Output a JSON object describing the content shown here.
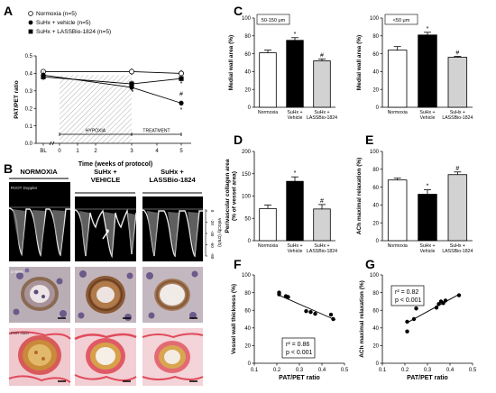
{
  "panel_letters": {
    "A": "A",
    "B": "B",
    "C": "C",
    "D": "D",
    "E": "E",
    "F": "F",
    "G": "G"
  },
  "chart_data": [
    {
      "id": "A",
      "type": "line",
      "legend": [
        "Normoxia (n=5)",
        "SuHx + vehicle (n=5)",
        "SuHx + LASSBio-1824 (n=5)"
      ],
      "legend_placement": "top-left",
      "ylabel": "PAT/PET ratio",
      "xlabel": "Time (weeks of protocol)",
      "ylim": [
        0.0,
        0.5
      ],
      "yticks": [
        "0.0",
        "0.1",
        "0.2",
        "0.3",
        "0.4",
        "0.5"
      ],
      "xticks": [
        "BL",
        "0",
        "1",
        "2",
        "3",
        "4",
        "5"
      ],
      "x": [
        "BL",
        "3",
        "5"
      ],
      "series": [
        {
          "name": "Normoxia (n=5)",
          "marker": "open-circle",
          "values": [
            0.41,
            0.41,
            0.4
          ]
        },
        {
          "name": "SuHx + vehicle (n=5)",
          "marker": "filled-circle",
          "values": [
            0.39,
            0.32,
            0.23
          ]
        },
        {
          "name": "SuHx + LASSBio-1824 (n=5)",
          "marker": "filled-square",
          "values": [
            0.38,
            0.34,
            0.37
          ]
        }
      ],
      "annotations": [
        "HYPOXIA",
        "TREATMENT",
        "*",
        "*",
        "#",
        "*"
      ]
    },
    {
      "id": "C1",
      "type": "bar",
      "header": "50-150 μm",
      "ylabel": "Medial wall area (%)",
      "ylim": [
        0,
        100
      ],
      "yticks": [
        "0",
        "20",
        "40",
        "60",
        "80",
        "100"
      ],
      "categories": [
        "Normoxia",
        "SuHx +\nVehicle",
        "SuHx +\nLASSBio-1824"
      ],
      "values": [
        61,
        75,
        52
      ],
      "errors": [
        3,
        3,
        2
      ],
      "marks": [
        "",
        "*",
        "#"
      ]
    },
    {
      "id": "C2",
      "type": "bar",
      "header": "<50 μm",
      "ylabel": "Medial wall area (%)",
      "ylim": [
        0,
        100
      ],
      "yticks": [
        "0",
        "20",
        "40",
        "60",
        "80",
        "100"
      ],
      "categories": [
        "Normoxia",
        "SuHx +\nVehicle",
        "SuHx +\nLASSBio-1824"
      ],
      "values": [
        64,
        81,
        56
      ],
      "errors": [
        4,
        3,
        1
      ],
      "marks": [
        "",
        "*",
        "#"
      ]
    },
    {
      "id": "D",
      "type": "bar",
      "ylabel": "Perivascular collagen area\n(% of vessel area)",
      "ylim": [
        0,
        200
      ],
      "yticks": [
        "0",
        "50",
        "100",
        "150",
        "200"
      ],
      "categories": [
        "Normoxia",
        "SuHx +\nVehicle",
        "SuHx +\nLASSBio-1824"
      ],
      "values": [
        72,
        133,
        71
      ],
      "errors": [
        8,
        10,
        10
      ],
      "marks": [
        "",
        "*",
        "#"
      ]
    },
    {
      "id": "E",
      "type": "bar",
      "ylabel": "ACh maximal relaxation (%)",
      "ylim": [
        0,
        100
      ],
      "yticks": [
        "0",
        "20",
        "40",
        "60",
        "80",
        "100"
      ],
      "categories": [
        "Normoxia",
        "SuHx +\nVehicle",
        "SuHx +\nLASSBio-1824"
      ],
      "values": [
        68,
        52,
        74
      ],
      "errors": [
        2,
        5,
        3
      ],
      "marks": [
        "",
        "*",
        "#"
      ]
    },
    {
      "id": "F",
      "type": "scatter",
      "ylabel": "Vessel wall thickness (%)",
      "xlabel": "PAT/PET ratio",
      "xlim": [
        0.1,
        0.5
      ],
      "ylim": [
        0,
        100
      ],
      "xticks": [
        "0.1",
        "0.2",
        "0.3",
        "0.4",
        "0.5"
      ],
      "yticks": [
        "0",
        "20",
        "40",
        "60",
        "80",
        "100"
      ],
      "x": [
        0.21,
        0.21,
        0.24,
        0.25,
        0.33,
        0.35,
        0.37,
        0.44,
        0.45
      ],
      "y": [
        80,
        78,
        76,
        75,
        59,
        58,
        56,
        55,
        50
      ],
      "fit": {
        "x": [
          0.21,
          0.46
        ],
        "y": [
          77,
          49
        ]
      },
      "stats": {
        "r2": "r² = 0.86",
        "p": "p < 0.001"
      }
    },
    {
      "id": "G",
      "type": "scatter",
      "ylabel": "ACh maximal relaxation (%)",
      "xlabel": "PAT/PET ratio",
      "xlim": [
        0.1,
        0.5
      ],
      "ylim": [
        0,
        100
      ],
      "xticks": [
        "0.1",
        "0.2",
        "0.3",
        "0.4",
        "0.5"
      ],
      "yticks": [
        "0",
        "20",
        "40",
        "60",
        "80",
        "100"
      ],
      "x": [
        0.21,
        0.21,
        0.24,
        0.25,
        0.34,
        0.35,
        0.36,
        0.37,
        0.38,
        0.44
      ],
      "y": [
        36,
        47,
        50,
        62,
        63,
        67,
        70,
        68,
        71,
        77
      ],
      "fit": {
        "x": [
          0.21,
          0.44
        ],
        "y": [
          46,
          78
        ]
      },
      "stats": {
        "r2": "r² = 0.82",
        "p": "p < 0.001"
      }
    }
  ],
  "panel_b": {
    "columns": [
      "NORMOXIA",
      "SuHx +\nVEHICLE",
      "SuHx +\nLASSBio-1824"
    ],
    "row_labels": [
      "RVOT Doppler",
      "α-SMA",
      "PSR stain"
    ],
    "velocity_axis": {
      "label": "velocity (cm/s)",
      "ticks": [
        "0",
        "-20",
        "-40",
        "-60",
        "-80"
      ]
    }
  }
}
